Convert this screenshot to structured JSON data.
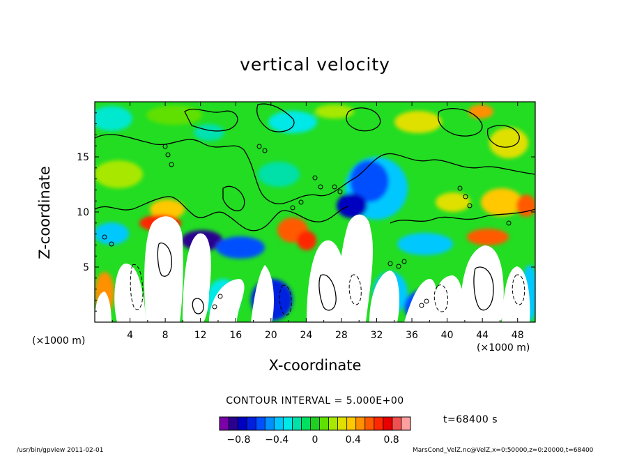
{
  "chart_data": {
    "type": "heatmap",
    "title": "vertical velocity",
    "xlabel": "X-coordinate",
    "ylabel": "Z-coordinate",
    "x_unit": "(×1000 m)",
    "xlim": [
      0,
      50
    ],
    "ylim": [
      0,
      20
    ],
    "x_ticks": [
      4,
      8,
      12,
      16,
      20,
      24,
      28,
      32,
      36,
      40,
      44,
      48
    ],
    "y_ticks": [
      5,
      10,
      15
    ],
    "contour_interval": "CONTOUR INTERVAL = 5.000E+00",
    "time": "t=68400 s",
    "colorbar": {
      "colors": [
        "#7a00a8",
        "#2a0090",
        "#0000c0",
        "#0020e0",
        "#0050ff",
        "#0090ff",
        "#00c8ff",
        "#00e8e8",
        "#00e0a8",
        "#00e060",
        "#20d020",
        "#60e000",
        "#a8e800",
        "#e0e000",
        "#ffc800",
        "#ff9000",
        "#ff5a00",
        "#ff2800",
        "#e80000",
        "#f05050",
        "#ffa0a0"
      ],
      "tick_labels": [
        "−0.8",
        "−0.4",
        "0",
        "0.4",
        "0.8"
      ],
      "tick_values": [
        -0.8,
        -0.4,
        0,
        0.4,
        0.8
      ],
      "range": [
        -1.0,
        1.0
      ]
    }
  },
  "footer": {
    "left": "/usr/bin/gpview   2011-02-01",
    "right": "MarsCond_VelZ.nc@VelZ,x=0:50000,z=0:20000,t=68400"
  }
}
